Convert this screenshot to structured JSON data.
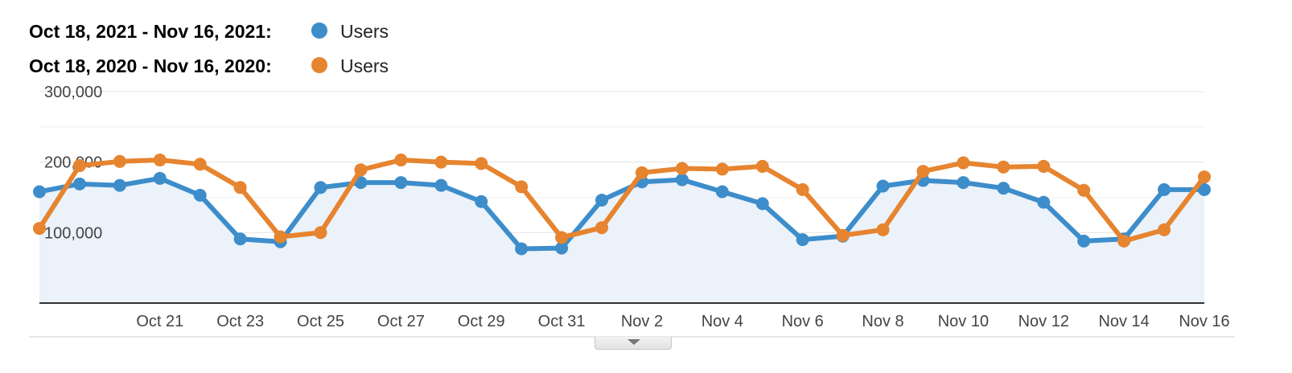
{
  "colors": {
    "current": "#3d8dcb",
    "previous": "#e6842f",
    "area": "#ebf2f9"
  },
  "legend": [
    {
      "range": "Oct 18, 2021 - Nov 16, 2021:",
      "name": "Users",
      "color": "#3d8dcb"
    },
    {
      "range": "Oct 18, 2020 - Nov 16, 2020:",
      "name": "Users",
      "color": "#e6842f"
    }
  ],
  "chart_data": {
    "type": "line",
    "x": [
      "Oct 18",
      "Oct 19",
      "Oct 20",
      "Oct 21",
      "Oct 22",
      "Oct 23",
      "Oct 24",
      "Oct 25",
      "Oct 26",
      "Oct 27",
      "Oct 28",
      "Oct 29",
      "Oct 30",
      "Oct 31",
      "Nov 1",
      "Nov 2",
      "Nov 3",
      "Nov 4",
      "Nov 5",
      "Nov 6",
      "Nov 7",
      "Nov 8",
      "Nov 9",
      "Nov 10",
      "Nov 11",
      "Nov 12",
      "Nov 13",
      "Nov 14",
      "Nov 15",
      "Nov 16"
    ],
    "x_tick_labels": [
      "Oct 21",
      "Oct 23",
      "Oct 25",
      "Oct 27",
      "Oct 29",
      "Oct 31",
      "Nov 2",
      "Nov 4",
      "Nov 6",
      "Nov 8",
      "Nov 10",
      "Nov 12",
      "Nov 14",
      "Nov 16"
    ],
    "y_tick_labels": [
      "300,000",
      "200,000",
      "100,000"
    ],
    "y_ticks": [
      300000,
      200000,
      100000
    ],
    "ylim": [
      0,
      300000
    ],
    "grid": true,
    "legend_position": "top-left",
    "series": [
      {
        "name": "Users",
        "area": true,
        "values": [
          158000,
          169000,
          167000,
          177000,
          153000,
          91000,
          87000,
          164000,
          171000,
          171000,
          167000,
          144000,
          77000,
          78000,
          146000,
          172000,
          175000,
          158000,
          141000,
          90000,
          95000,
          166000,
          174000,
          171000,
          163000,
          143000,
          88000,
          91000,
          161000,
          161000
        ]
      },
      {
        "name": "Users",
        "area": false,
        "values": [
          106000,
          195000,
          201000,
          203000,
          197000,
          164000,
          94000,
          100000,
          189000,
          203000,
          200000,
          198000,
          165000,
          93000,
          107000,
          185000,
          191000,
          190000,
          194000,
          161000,
          96000,
          104000,
          187000,
          199000,
          193000,
          194000,
          160000,
          88000,
          104000,
          179000
        ]
      }
    ]
  }
}
